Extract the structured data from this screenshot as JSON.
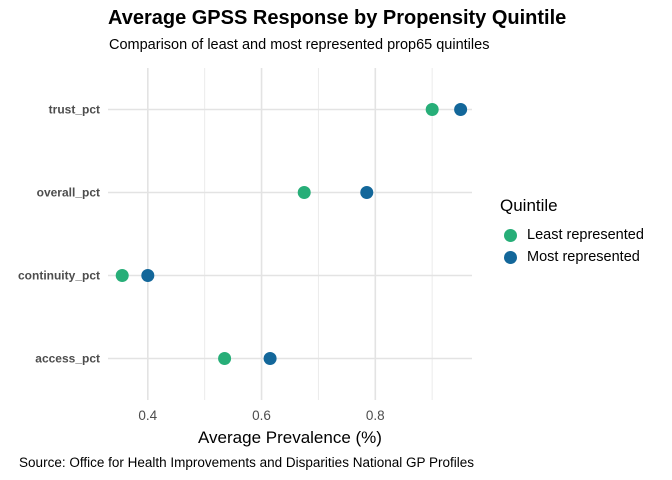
{
  "chart_data": {
    "type": "scatter",
    "title": "Average GPSS Response by Propensity Quintile",
    "subtitle": "Comparison of least and most represented prop65 quintiles",
    "caption": "Source: Office for Health Improvements and Disparities National GP Profiles",
    "xlabel": "Average Prevalence (%)",
    "ylabel": "",
    "categories": [
      "trust_pct",
      "overall_pct",
      "continuity_pct",
      "access_pct"
    ],
    "x_ticks": [
      0.4,
      0.6,
      0.8
    ],
    "x_tick_labels": [
      "0.4",
      "0.6",
      "0.8"
    ],
    "xlim": [
      0.33,
      0.97
    ],
    "grid": true,
    "legend": {
      "title": "Quintile",
      "placement": "right"
    },
    "series": [
      {
        "name": "Least represented",
        "color": "#27ae78",
        "values": [
          0.9,
          0.675,
          0.355,
          0.535
        ]
      },
      {
        "name": "Most represented",
        "color": "#13679a",
        "values": [
          0.95,
          0.785,
          0.4,
          0.615
        ]
      }
    ]
  }
}
